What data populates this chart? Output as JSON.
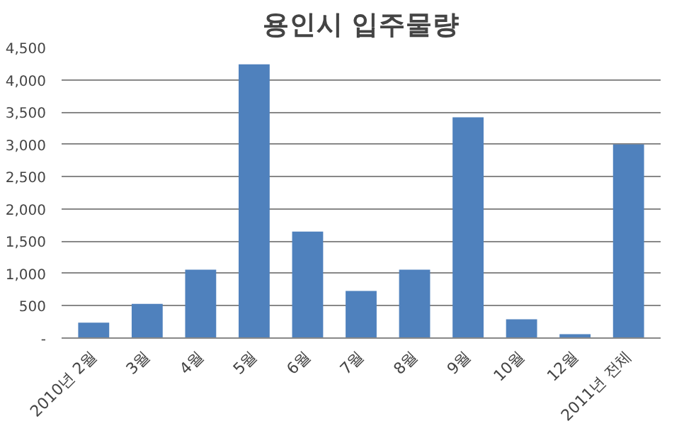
{
  "chart_data": {
    "type": "bar",
    "title": "용인시 입주물량",
    "categories": [
      "2010년 2월",
      "3월",
      "4월",
      "5월",
      "6월",
      "7월",
      "8월",
      "9월",
      "10월",
      "12월",
      "2011년 전체"
    ],
    "values": [
      240,
      530,
      1060,
      4240,
      1650,
      730,
      1060,
      3420,
      290,
      60,
      3000
    ],
    "color": "#4f81bd",
    "ylim": [
      0,
      4500
    ],
    "yticks": [
      {
        "value": 0,
        "label": "-"
      },
      {
        "value": 500,
        "label": "500"
      },
      {
        "value": 1000,
        "label": "1,000"
      },
      {
        "value": 1500,
        "label": "1,500"
      },
      {
        "value": 2000,
        "label": "2,000"
      },
      {
        "value": 2500,
        "label": "2,500"
      },
      {
        "value": 3000,
        "label": "3,000"
      },
      {
        "value": 3500,
        "label": "3,500"
      },
      {
        "value": 4000,
        "label": "4,000"
      },
      {
        "value": 4500,
        "label": "4,500"
      }
    ],
    "grid": "y"
  }
}
